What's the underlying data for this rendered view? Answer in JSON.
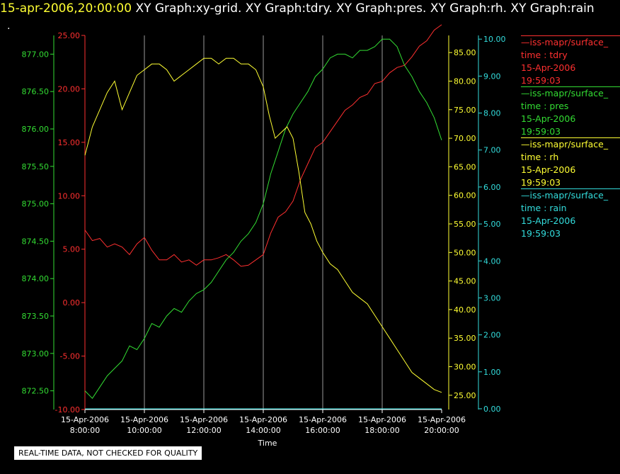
{
  "header": {
    "timestamp": "15-apr-2006,20:00:00",
    "graphs": "XY Graph:xy-grid.  XY Graph:tdry.  XY Graph:pres.  XY Graph:rh.  XY Graph:rain",
    "marker": "."
  },
  "legend": [
    {
      "source": "iss-mapr/surface_",
      "label": "time : tdry",
      "date": "15-Apr-2006",
      "time": "19:59:03",
      "color": "#ff3030"
    },
    {
      "source": "iss-mapr/surface_",
      "label": "time : pres",
      "date": "15-Apr-2006",
      "time": "19:59:03",
      "color": "#33dd33"
    },
    {
      "source": "iss-mapr/surface_",
      "label": "time : rh",
      "date": "15-Apr-2006",
      "time": "19:59:03",
      "color": "#ffff33"
    },
    {
      "source": "iss-mapr/surface_",
      "label": "time : rain",
      "date": "15-Apr-2006",
      "time": "19:59:03",
      "color": "#33dddd"
    }
  ],
  "disclaimer": "REAL-TIME DATA, NOT CHECKED FOR QUALITY",
  "chart_data": {
    "type": "line",
    "xlabel": "Time",
    "x_ticks": [
      {
        "date": "15-Apr-2006",
        "time": "8:00:00"
      },
      {
        "date": "15-Apr-2006",
        "time": "10:00:00"
      },
      {
        "date": "15-Apr-2006",
        "time": "12:00:00"
      },
      {
        "date": "15-Apr-2006",
        "time": "14:00:00"
      },
      {
        "date": "15-Apr-2006",
        "time": "16:00:00"
      },
      {
        "date": "15-Apr-2006",
        "time": "18:00:00"
      },
      {
        "date": "15-Apr-2006",
        "time": "20:00:00"
      }
    ],
    "xlim": [
      8,
      20
    ],
    "grid": "vertical",
    "axes": [
      {
        "id": "tdry",
        "color": "#ff3030",
        "side": "left-outer",
        "ylim": [
          -10,
          25
        ],
        "ticks": [
          "-10.00",
          "-5.00",
          "0.00",
          "5.00",
          "10.00",
          "15.00",
          "20.00",
          "25.00"
        ]
      },
      {
        "id": "pres",
        "color": "#33dd33",
        "side": "left-inner",
        "ylim": [
          872.25,
          877.25
        ],
        "ticks": [
          "872.50",
          "873.00",
          "873.50",
          "874.00",
          "874.50",
          "875.00",
          "875.50",
          "876.00",
          "876.50",
          "877.00"
        ]
      },
      {
        "id": "rh",
        "color": "#ffff33",
        "side": "right-inner",
        "ylim": [
          22.5,
          88
        ],
        "ticks": [
          "25.00",
          "30.00",
          "35.00",
          "40.00",
          "45.00",
          "50.00",
          "55.00",
          "60.00",
          "65.00",
          "70.00",
          "75.00",
          "80.00",
          "85.00"
        ]
      },
      {
        "id": "rain",
        "color": "#33dddd",
        "side": "right-outer",
        "ylim": [
          -0.02,
          10.1
        ],
        "ticks": [
          "0.00",
          "1.00",
          "2.00",
          "3.00",
          "4.00",
          "5.00",
          "6.00",
          "7.00",
          "8.00",
          "9.00",
          "10.00"
        ]
      }
    ],
    "series": [
      {
        "axis": "tdry",
        "color": "#ff3030",
        "x": [
          8,
          8.25,
          8.5,
          8.75,
          9,
          9.25,
          9.5,
          9.75,
          10,
          10.25,
          10.5,
          10.75,
          11,
          11.25,
          11.5,
          11.75,
          12,
          12.25,
          12.5,
          12.75,
          13,
          13.25,
          13.5,
          13.75,
          14,
          14.25,
          14.5,
          14.75,
          15,
          15.25,
          15.5,
          15.75,
          16,
          16.25,
          16.5,
          16.75,
          17,
          17.25,
          17.5,
          17.75,
          18,
          18.25,
          18.5,
          18.75,
          19,
          19.25,
          19.5,
          19.75,
          20
        ],
        "y": [
          6.8,
          5.8,
          6,
          5.2,
          5.5,
          5.2,
          4.5,
          5.5,
          6.1,
          4.9,
          4,
          4,
          4.5,
          3.8,
          4,
          3.5,
          4,
          4,
          4.2,
          4.5,
          4,
          3.4,
          3.5,
          4,
          4.5,
          6.5,
          8,
          8.5,
          9.5,
          11.5,
          13,
          14.5,
          15,
          16,
          17,
          18,
          18.5,
          19.2,
          19.5,
          20.5,
          20.7,
          21.5,
          22,
          22.2,
          23,
          24,
          24.5,
          25.5,
          26
        ]
      },
      {
        "axis": "pres",
        "color": "#33dd33",
        "x": [
          8,
          8.25,
          8.5,
          8.75,
          9,
          9.25,
          9.5,
          9.75,
          10,
          10.25,
          10.5,
          10.75,
          11,
          11.25,
          11.5,
          11.75,
          12,
          12.25,
          12.5,
          12.75,
          13,
          13.25,
          13.5,
          13.75,
          14,
          14.25,
          14.5,
          14.75,
          15,
          15.25,
          15.5,
          15.75,
          16,
          16.25,
          16.5,
          16.75,
          17,
          17.25,
          17.5,
          17.75,
          18,
          18.25,
          18.5,
          18.75,
          19,
          19.25,
          19.5,
          19.75,
          20
        ],
        "y": [
          872.5,
          872.4,
          872.55,
          872.7,
          872.8,
          872.9,
          873.1,
          873.05,
          873.2,
          873.4,
          873.35,
          873.5,
          873.6,
          873.55,
          873.7,
          873.8,
          873.85,
          873.95,
          874.1,
          874.25,
          874.35,
          874.5,
          874.6,
          874.75,
          875,
          875.4,
          875.7,
          876,
          876.2,
          876.35,
          876.5,
          876.7,
          876.8,
          876.95,
          877,
          877,
          876.95,
          877.05,
          877.05,
          877.1,
          877.2,
          877.2,
          877.1,
          876.85,
          876.7,
          876.5,
          876.35,
          876.15,
          875.85
        ]
      },
      {
        "axis": "rh",
        "color": "#ffff33",
        "x": [
          8,
          8.1,
          8.25,
          8.5,
          8.75,
          9,
          9.25,
          9.5,
          9.75,
          10,
          10.25,
          10.5,
          10.75,
          11,
          11.25,
          11.5,
          11.75,
          12,
          12.25,
          12.5,
          12.75,
          13,
          13.25,
          13.5,
          13.75,
          14,
          14.2,
          14.4,
          14.6,
          14.8,
          15,
          15.2,
          15.4,
          15.6,
          15.8,
          16,
          16.25,
          16.5,
          16.75,
          17,
          17.25,
          17.5,
          17.75,
          18,
          18.25,
          18.5,
          18.75,
          19,
          19.25,
          19.5,
          19.75,
          20
        ],
        "y": [
          67,
          69,
          72,
          75,
          78,
          80,
          75,
          78,
          81,
          82,
          83,
          83,
          82,
          80,
          81,
          82,
          83,
          84,
          84,
          83,
          84,
          84,
          83,
          83,
          82,
          79,
          74,
          70,
          71,
          72,
          70,
          64,
          57,
          55,
          52,
          50,
          48,
          47,
          45,
          43,
          42,
          41,
          39,
          37,
          35,
          33,
          31,
          29,
          28,
          27,
          26,
          25.5
        ]
      },
      {
        "axis": "rain",
        "color": "#33dddd",
        "x": [
          8,
          20
        ],
        "y": [
          0,
          0
        ]
      }
    ]
  }
}
